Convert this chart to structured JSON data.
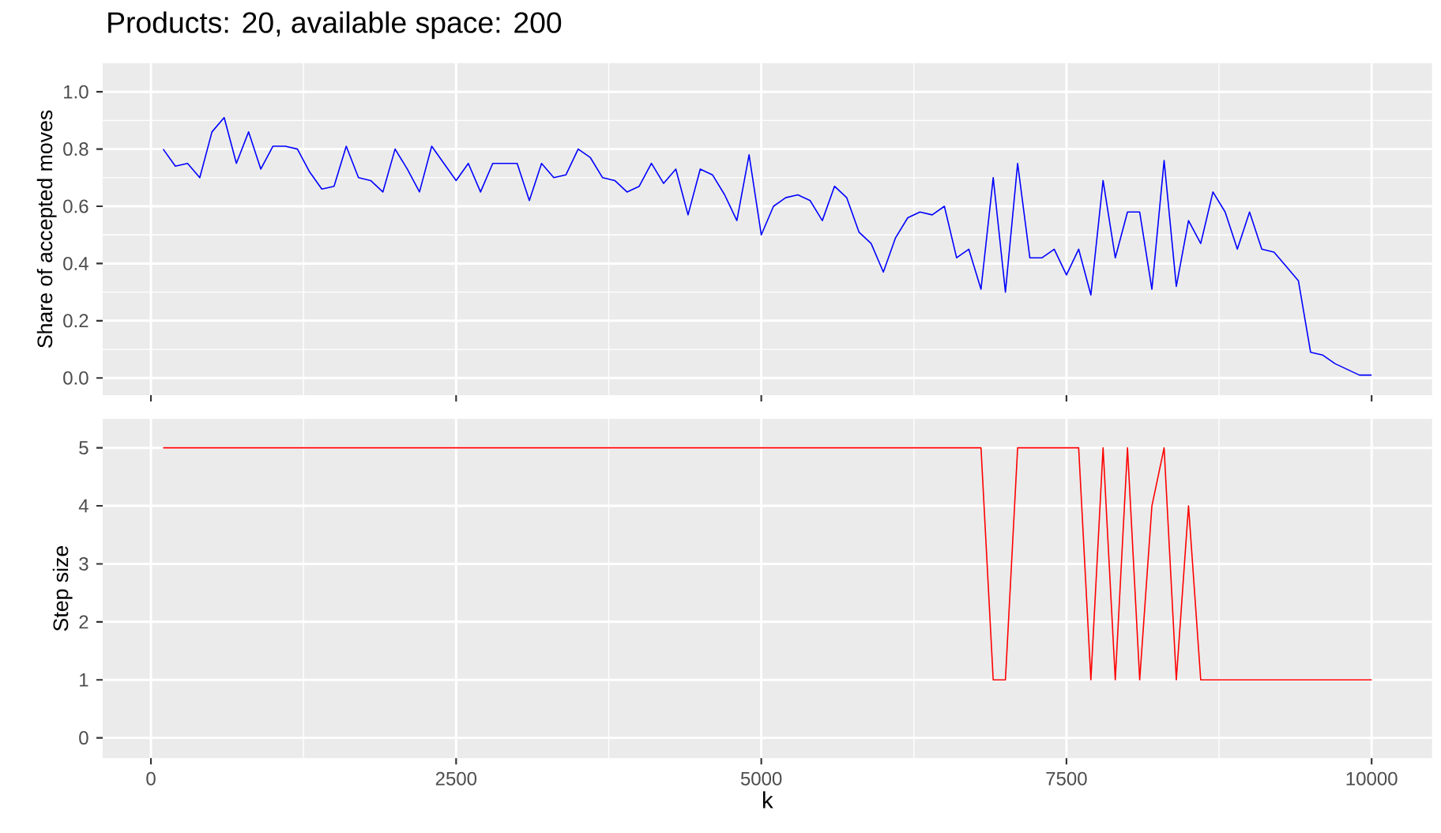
{
  "chart_data": [
    {
      "type": "line",
      "title": "Products: 20, available space: 200",
      "ylabel": "Share of accepted moves",
      "x": [
        100,
        200,
        300,
        400,
        500,
        600,
        700,
        800,
        900,
        1000,
        1100,
        1200,
        1300,
        1400,
        1500,
        1600,
        1700,
        1800,
        1900,
        2000,
        2100,
        2200,
        2300,
        2400,
        2500,
        2600,
        2700,
        2800,
        2900,
        3000,
        3100,
        3200,
        3300,
        3400,
        3500,
        3600,
        3700,
        3800,
        3900,
        4000,
        4100,
        4200,
        4300,
        4400,
        4500,
        4600,
        4700,
        4800,
        4900,
        5000,
        5100,
        5200,
        5300,
        5400,
        5500,
        5600,
        5700,
        5800,
        5900,
        6000,
        6100,
        6200,
        6300,
        6400,
        6500,
        6600,
        6700,
        6800,
        6900,
        7000,
        7100,
        7200,
        7300,
        7400,
        7500,
        7600,
        7700,
        7800,
        7900,
        8000,
        8100,
        8200,
        8300,
        8400,
        8500,
        8600,
        8700,
        8800,
        8900,
        9000,
        9100,
        9200,
        9300,
        9400,
        9500,
        9600,
        9700,
        9800,
        9900,
        10000
      ],
      "series": [
        {
          "color": "#0000ff",
          "values": [
            0.8,
            0.74,
            0.75,
            0.7,
            0.86,
            0.91,
            0.75,
            0.86,
            0.73,
            0.81,
            0.81,
            0.8,
            0.72,
            0.66,
            0.67,
            0.81,
            0.7,
            0.69,
            0.65,
            0.8,
            0.73,
            0.65,
            0.81,
            0.75,
            0.69,
            0.75,
            0.65,
            0.75,
            0.75,
            0.75,
            0.62,
            0.75,
            0.7,
            0.71,
            0.8,
            0.77,
            0.7,
            0.69,
            0.65,
            0.67,
            0.75,
            0.68,
            0.73,
            0.57,
            0.73,
            0.71,
            0.64,
            0.55,
            0.78,
            0.5,
            0.6,
            0.63,
            0.64,
            0.62,
            0.55,
            0.67,
            0.63,
            0.51,
            0.47,
            0.37,
            0.49,
            0.56,
            0.58,
            0.57,
            0.6,
            0.42,
            0.45,
            0.31,
            0.7,
            0.3,
            0.75,
            0.42,
            0.42,
            0.45,
            0.36,
            0.45,
            0.29,
            0.69,
            0.42,
            0.58,
            0.58,
            0.31,
            0.76,
            0.32,
            0.55,
            0.47,
            0.65,
            0.58,
            0.45,
            0.58,
            0.45,
            0.44,
            0.39,
            0.34,
            0.09,
            0.08,
            0.05,
            0.03,
            0.01,
            0.01
          ]
        }
      ],
      "xlim": [
        -395,
        10495
      ],
      "ylim": [
        -0.06,
        1.1
      ],
      "xticks": [
        0,
        2500,
        5000,
        7500,
        10000
      ],
      "yticks": [
        {
          "value": 0,
          "label": "0.0"
        },
        {
          "value": 0.2,
          "label": "0.2"
        },
        {
          "value": 0.4,
          "label": "0.4"
        },
        {
          "value": 0.6,
          "label": "0.6"
        },
        {
          "value": 0.8,
          "label": "0.8"
        },
        {
          "value": 1,
          "label": "1.0"
        }
      ],
      "grid": true,
      "tick_labels": "y"
    },
    {
      "type": "line",
      "xlabel": "k",
      "ylabel": "Step size",
      "x": [
        100,
        6800,
        6900,
        7000,
        7100,
        7600,
        7700,
        7800,
        7900,
        8000,
        8100,
        8200,
        8300,
        8400,
        8500,
        8600,
        10000
      ],
      "series": [
        {
          "color": "#ff0000",
          "values": [
            5,
            5,
            1,
            1,
            5,
            5,
            1,
            5,
            1,
            5,
            1,
            4,
            5,
            1,
            4,
            1,
            1
          ]
        }
      ],
      "xlim": [
        -395,
        10495
      ],
      "ylim": [
        -0.35,
        5.5
      ],
      "xticks": [
        0,
        2500,
        5000,
        7500,
        10000
      ],
      "yticks": [
        0,
        1,
        2,
        3,
        4,
        5
      ],
      "grid": true
    }
  ]
}
